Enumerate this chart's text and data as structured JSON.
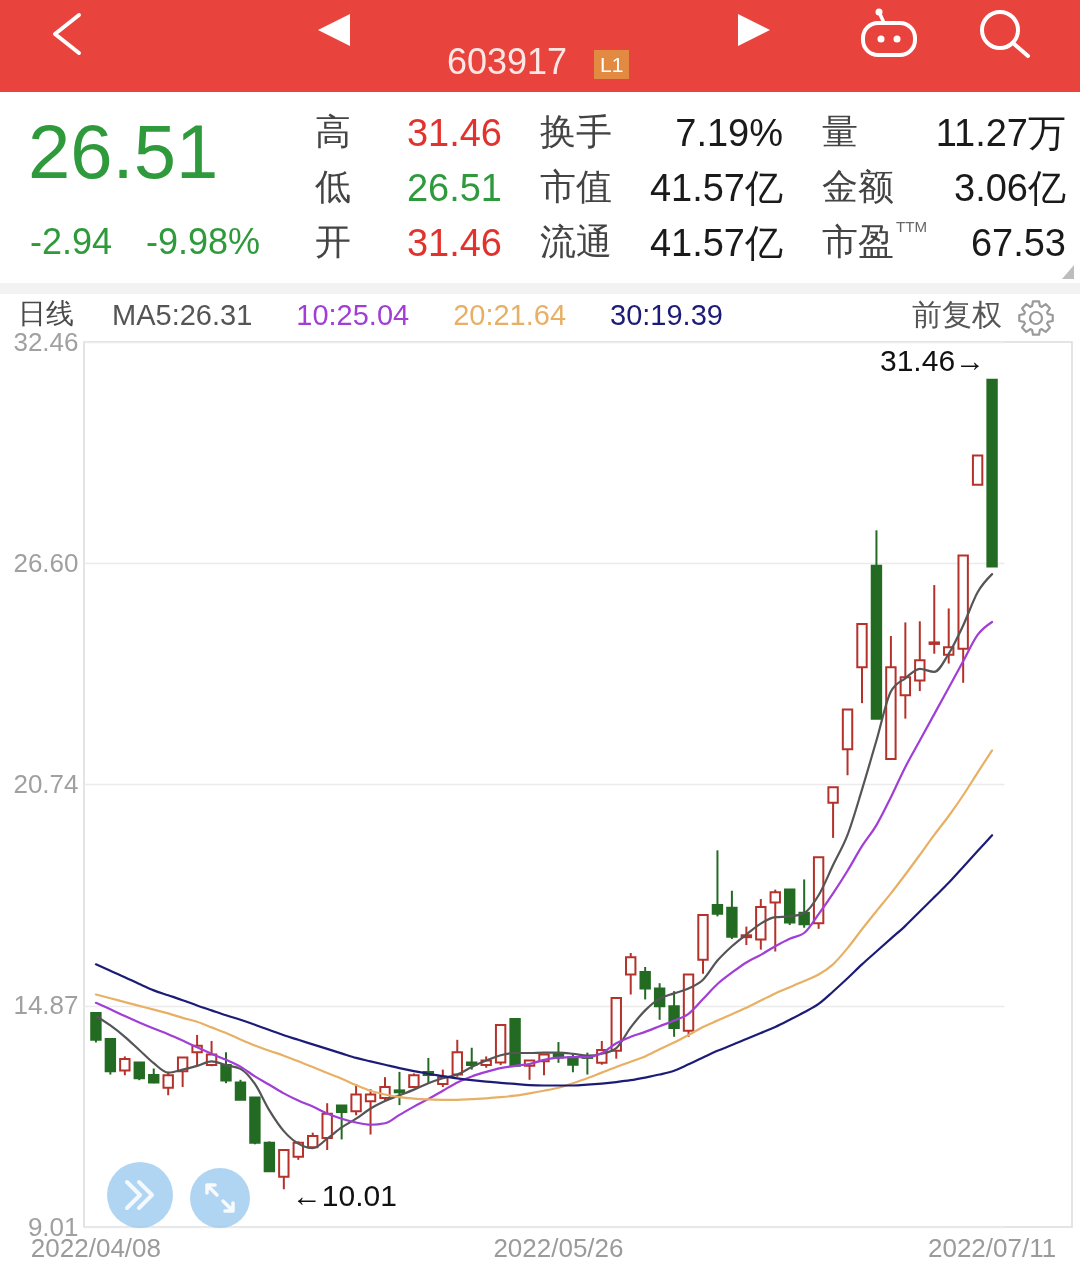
{
  "chart_data": {
    "type": "candlestick",
    "title": "603917",
    "categories": [
      "2022/04/08",
      null,
      null,
      null,
      null,
      null,
      null,
      null,
      null,
      null,
      null,
      null,
      null,
      null,
      null,
      null,
      null,
      null,
      null,
      null,
      null,
      null,
      null,
      null,
      null,
      null,
      null,
      null,
      null,
      null,
      null,
      null,
      "2022/05/26",
      null,
      null,
      null,
      null,
      null,
      null,
      null,
      null,
      null,
      null,
      null,
      null,
      null,
      null,
      null,
      null,
      null,
      null,
      null,
      null,
      null,
      null,
      null,
      null,
      null,
      null,
      null,
      null,
      null,
      "2022/07/11"
    ],
    "ohlc": [
      [
        14.68,
        14.68,
        13.9,
        13.97
      ],
      [
        13.99,
        13.99,
        13.05,
        13.14
      ],
      [
        13.16,
        13.53,
        13.03,
        13.46
      ],
      [
        13.37,
        13.37,
        12.9,
        12.95
      ],
      [
        13.04,
        13.21,
        12.82,
        12.84
      ],
      [
        12.7,
        13.12,
        12.5,
        13.03
      ],
      [
        13.14,
        13.5,
        12.72,
        13.5
      ],
      [
        13.64,
        14.1,
        13.27,
        13.81
      ],
      [
        13.3,
        13.94,
        13.27,
        13.58
      ],
      [
        13.3,
        13.64,
        12.82,
        12.89
      ],
      [
        12.84,
        12.91,
        12.38,
        12.38
      ],
      [
        12.44,
        12.44,
        11.2,
        11.24
      ],
      [
        11.24,
        11.28,
        10.49,
        10.49
      ],
      [
        10.34,
        11.05,
        10.01,
        11.05
      ],
      [
        10.87,
        11.28,
        10.79,
        11.24
      ],
      [
        11.12,
        11.51,
        11.1,
        11.42
      ],
      [
        11.37,
        12.29,
        11.05,
        12.01
      ],
      [
        12.23,
        12.23,
        11.33,
        12.06
      ],
      [
        12.08,
        12.8,
        11.97,
        12.52
      ],
      [
        12.34,
        12.66,
        11.46,
        12.52
      ],
      [
        12.43,
        12.98,
        12.34,
        12.72
      ],
      [
        12.63,
        13.12,
        12.24,
        12.58
      ],
      [
        12.72,
        13.08,
        12.69,
        13.03
      ],
      [
        13.12,
        13.49,
        12.82,
        13.04
      ],
      [
        12.8,
        13.18,
        12.72,
        12.98
      ],
      [
        13.05,
        13.97,
        12.99,
        13.64
      ],
      [
        13.37,
        13.76,
        13.18,
        13.3
      ],
      [
        13.3,
        13.53,
        13.23,
        13.42
      ],
      [
        13.37,
        14.36,
        13.3,
        14.36
      ],
      [
        14.52,
        14.52,
        13.28,
        13.28
      ],
      [
        13.28,
        13.42,
        12.91,
        13.42
      ],
      [
        13.4,
        13.58,
        13.03,
        13.58
      ],
      [
        13.62,
        13.91,
        13.36,
        13.5
      ],
      [
        13.51,
        13.59,
        13.11,
        13.31
      ],
      [
        13.54,
        13.63,
        13.05,
        13.49
      ],
      [
        13.36,
        13.94,
        13.31,
        13.7
      ],
      [
        13.68,
        15.08,
        13.47,
        15.08
      ],
      [
        15.7,
        16.27,
        15.17,
        16.16
      ],
      [
        15.77,
        15.9,
        15.04,
        15.33
      ],
      [
        15.33,
        15.47,
        14.5,
        14.86
      ],
      [
        14.86,
        15.26,
        14.05,
        14.28
      ],
      [
        14.21,
        15.7,
        14.05,
        15.7
      ],
      [
        16.09,
        17.28,
        15.72,
        17.28
      ],
      [
        17.54,
        18.99,
        17.24,
        17.31
      ],
      [
        17.47,
        17.92,
        16.64,
        16.7
      ],
      [
        16.69,
        16.97,
        16.48,
        16.74
      ],
      [
        16.63,
        17.7,
        16.36,
        17.49
      ],
      [
        17.61,
        17.95,
        16.31,
        17.88
      ],
      [
        17.95,
        17.95,
        17.01,
        17.08
      ],
      [
        17.34,
        18.22,
        16.94,
        17.03
      ],
      [
        17.06,
        18.81,
        16.91,
        18.81
      ],
      [
        20.25,
        20.66,
        19.32,
        20.66
      ],
      [
        21.67,
        22.72,
        20.98,
        22.72
      ],
      [
        23.84,
        24.99,
        22.89,
        24.99
      ],
      [
        26.53,
        27.47,
        22.48,
        22.48
      ],
      [
        21.41,
        24.67,
        21.41,
        23.84
      ],
      [
        23.1,
        25.03,
        22.48,
        23.58
      ],
      [
        23.49,
        25.06,
        23.21,
        24.03
      ],
      [
        24.46,
        26.02,
        24.2,
        24.5
      ],
      [
        24.17,
        25.4,
        23.94,
        24.37
      ],
      [
        24.33,
        26.8,
        23.43,
        26.8
      ],
      [
        28.68,
        29.45,
        28.68,
        29.45
      ],
      [
        31.46,
        31.46,
        26.51,
        26.51
      ]
    ],
    "colors": [
      "#236b22",
      "#236b22",
      "#b5322b",
      "#236b22",
      "#236b22",
      "#b5322b",
      "#b5322b",
      "#b5322b",
      "#b5322b",
      "#236b22",
      "#236b22",
      "#236b22",
      "#236b22",
      "#b5322b",
      "#b5322b",
      "#b5322b",
      "#b5322b",
      "#236b22",
      "#b5322b",
      "#b5322b",
      "#b5322b",
      "#236b22",
      "#b5322b",
      "#236b22",
      "#b5322b",
      "#b5322b",
      "#236b22",
      "#b5322b",
      "#b5322b",
      "#236b22",
      "#b5322b",
      "#b5322b",
      "#236b22",
      "#236b22",
      "#236b22",
      "#b5322b",
      "#b5322b",
      "#b5322b",
      "#236b22",
      "#236b22",
      "#236b22",
      "#b5322b",
      "#b5322b",
      "#236b22",
      "#236b22",
      "#b5322b",
      "#b5322b",
      "#b5322b",
      "#236b22",
      "#236b22",
      "#b5322b",
      "#b5322b",
      "#b5322b",
      "#b5322b",
      "#236b22",
      "#b5322b",
      "#b5322b",
      "#b5322b",
      "#b5322b",
      "#b5322b",
      "#b5322b",
      "#b5322b",
      "#236b22"
    ],
    "series": [
      {
        "name": "MA5:26.31",
        "type": "line",
        "color": "#555555",
        "values": [
          14.6,
          14.35,
          14.05,
          13.7,
          13.35,
          13.1,
          13.18,
          13.28,
          13.4,
          13.3,
          13.2,
          12.8,
          12.1,
          11.55,
          11.22,
          11.1,
          11.35,
          11.65,
          11.88,
          12.15,
          12.35,
          12.5,
          12.65,
          12.82,
          12.95,
          13.05,
          13.25,
          13.42,
          13.56,
          13.62,
          13.62,
          13.63,
          13.63,
          13.6,
          13.55,
          13.6,
          13.75,
          14.3,
          14.75,
          15.06,
          15.2,
          15.33,
          15.56,
          16.07,
          16.45,
          16.76,
          17.05,
          17.22,
          17.24,
          17.33,
          17.8,
          18.6,
          19.4,
          20.6,
          21.9,
          23.2,
          23.55,
          23.8,
          23.72,
          24.2,
          24.95,
          25.83,
          26.31
        ]
      },
      {
        "name": "10:25.04",
        "type": "line",
        "color": "#a03ed6",
        "values": [
          14.95,
          14.78,
          14.6,
          14.43,
          14.27,
          14.12,
          13.95,
          13.77,
          13.6,
          13.44,
          13.26,
          13.0,
          12.78,
          12.55,
          12.36,
          12.2,
          12.02,
          11.88,
          11.78,
          11.72,
          11.76,
          11.98,
          12.2,
          12.4,
          12.62,
          12.84,
          13.0,
          13.12,
          13.22,
          13.28,
          13.33,
          13.44,
          13.5,
          13.51,
          13.51,
          13.62,
          13.88,
          14.05,
          14.18,
          14.33,
          14.48,
          14.66,
          15.05,
          15.45,
          15.75,
          16.02,
          16.22,
          16.45,
          16.65,
          16.8,
          17.3,
          17.85,
          18.45,
          19.1,
          19.66,
          20.4,
          21.2,
          21.9,
          22.6,
          23.3,
          24.0,
          24.7,
          25.04
        ]
      },
      {
        "name": "20:21.64",
        "type": "line",
        "color": "#e8b064",
        "values": [
          15.17,
          15.07,
          14.97,
          14.87,
          14.77,
          14.67,
          14.55,
          14.45,
          14.3,
          14.15,
          13.98,
          13.82,
          13.68,
          13.55,
          13.4,
          13.25,
          13.09,
          12.94,
          12.77,
          12.62,
          12.52,
          12.45,
          12.41,
          12.39,
          12.38,
          12.38,
          12.4,
          12.42,
          12.45,
          12.49,
          12.55,
          12.62,
          12.7,
          12.82,
          12.95,
          13.1,
          13.25,
          13.39,
          13.53,
          13.72,
          13.9,
          14.1,
          14.31,
          14.48,
          14.65,
          14.82,
          15.01,
          15.2,
          15.36,
          15.53,
          15.7,
          15.97,
          16.4,
          16.9,
          17.38,
          17.85,
          18.35,
          18.87,
          19.4,
          19.9,
          20.45,
          21.05,
          21.64
        ]
      },
      {
        "name": "30:19.39",
        "type": "line",
        "color": "#1c1c78",
        "values": [
          15.97,
          15.8,
          15.63,
          15.45,
          15.28,
          15.15,
          15.02,
          14.88,
          14.75,
          14.62,
          14.5,
          14.37,
          14.23,
          14.09,
          13.97,
          13.85,
          13.73,
          13.61,
          13.49,
          13.4,
          13.31,
          13.22,
          13.14,
          13.07,
          13.01,
          12.95,
          12.9,
          12.86,
          12.83,
          12.8,
          12.77,
          12.76,
          12.76,
          12.76,
          12.78,
          12.81,
          12.85,
          12.9,
          12.97,
          13.05,
          13.15,
          13.32,
          13.5,
          13.68,
          13.83,
          13.99,
          14.15,
          14.31,
          14.5,
          14.7,
          14.92,
          15.25,
          15.6,
          15.97,
          16.31,
          16.65,
          16.99,
          17.37,
          17.75,
          18.13,
          18.55,
          18.97,
          19.39
        ]
      }
    ],
    "ylim": [
      9.01,
      32.46
    ],
    "yticks": [
      9.01,
      14.87,
      20.74,
      {
        "value": 26.6,
        "label": "26.60"
      },
      32.46
    ],
    "grid": "y",
    "legend": "top left",
    "annotations": [
      {
        "text": "31.46→",
        "x": "2022/07/11",
        "y": 31.46
      },
      "←10.01",
      "L1",
      "26.51",
      "-2.94",
      "-9.98%",
      "高",
      "31.46",
      "换手",
      "7.19%",
      "量",
      "11.27万",
      "低",
      "26.51",
      "市值",
      "41.57亿",
      "金额",
      "3.06亿",
      "开",
      "31.46",
      "流通",
      "41.57亿",
      "市盈$^{TTM}$",
      "67.53",
      "日线",
      "前复权"
    ]
  }
}
